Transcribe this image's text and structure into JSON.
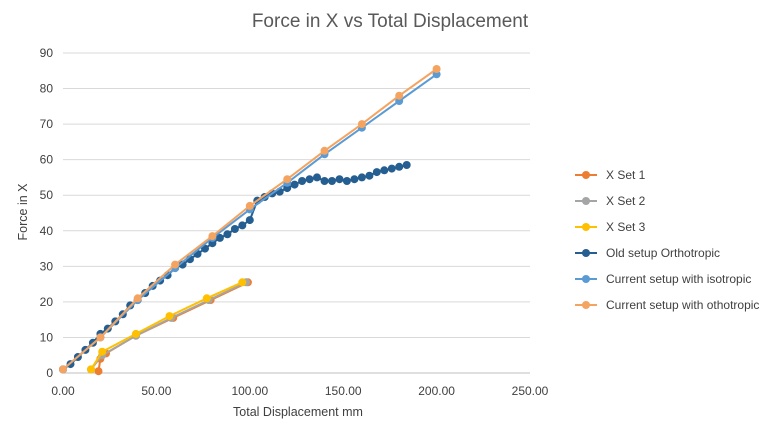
{
  "chart_data": {
    "type": "scatter",
    "title": "Force in X vs Total Displacement",
    "xlabel": "Total Displacement mm",
    "ylabel": "Force in X",
    "xlim": [
      0,
      250
    ],
    "ylim": [
      0,
      90
    ],
    "x_ticks": [
      0,
      50,
      100,
      150,
      200,
      250
    ],
    "x_tick_labels": [
      "0.00",
      "50.00",
      "100.00",
      "150.00",
      "200.00",
      "250.00"
    ],
    "y_ticks": [
      0,
      10,
      20,
      30,
      40,
      50,
      60,
      70,
      80,
      90
    ],
    "y_tick_labels": [
      "0",
      "10",
      "20",
      "30",
      "40",
      "50",
      "60",
      "70",
      "80",
      "90"
    ],
    "grid": "horizontal",
    "legend_position": "right",
    "series": [
      {
        "name": "X Set 1",
        "color": "#ED7D31",
        "lines": true,
        "points": [
          [
            19,
            0.5
          ],
          [
            20,
            4
          ],
          [
            23,
            5.5
          ],
          [
            39,
            10.5
          ],
          [
            59,
            15.5
          ],
          [
            79,
            20.5
          ],
          [
            99,
            25.5
          ]
        ]
      },
      {
        "name": "X Set 2",
        "color": "#A5A5A5",
        "lines": true,
        "points": [
          [
            15,
            1
          ],
          [
            21,
            5
          ],
          [
            39,
            10.5
          ],
          [
            58,
            15.5
          ],
          [
            78,
            20.5
          ],
          [
            98,
            25.5
          ]
        ]
      },
      {
        "name": "X Set 3",
        "color": "#FFC000",
        "lines": true,
        "points": [
          [
            15,
            1
          ],
          [
            21,
            6
          ],
          [
            39,
            11
          ],
          [
            57,
            16
          ],
          [
            77,
            21
          ],
          [
            96,
            25.5
          ]
        ]
      },
      {
        "name": "Old setup Orthotropic",
        "color": "#255E91",
        "lines": true,
        "points": [
          [
            0,
            1
          ],
          [
            4,
            2.5
          ],
          [
            8,
            4.5
          ],
          [
            12,
            6.5
          ],
          [
            16,
            8.5
          ],
          [
            20,
            11
          ],
          [
            24,
            12.5
          ],
          [
            28,
            14.5
          ],
          [
            32,
            16.5
          ],
          [
            36,
            19
          ],
          [
            40,
            20.5
          ],
          [
            44,
            22.5
          ],
          [
            48,
            24.5
          ],
          [
            52,
            26
          ],
          [
            56,
            27.5
          ],
          [
            60,
            29.5
          ],
          [
            64,
            30.5
          ],
          [
            68,
            32
          ],
          [
            72,
            33.5
          ],
          [
            76,
            35
          ],
          [
            80,
            36.5
          ],
          [
            84,
            38
          ],
          [
            88,
            39
          ],
          [
            92,
            40.5
          ],
          [
            96,
            41.5
          ],
          [
            100,
            43
          ],
          [
            104,
            48.5
          ],
          [
            108,
            49.5
          ],
          [
            112,
            50.5
          ],
          [
            116,
            51
          ],
          [
            120,
            52
          ],
          [
            124,
            53
          ],
          [
            128,
            54
          ],
          [
            132,
            54.5
          ],
          [
            136,
            55
          ],
          [
            140,
            54
          ],
          [
            144,
            54
          ],
          [
            148,
            54.5
          ],
          [
            152,
            54
          ],
          [
            156,
            54.5
          ],
          [
            160,
            55
          ],
          [
            164,
            55.5
          ],
          [
            168,
            56.5
          ],
          [
            172,
            57
          ],
          [
            176,
            57.5
          ],
          [
            180,
            58
          ],
          [
            184,
            58.5
          ]
        ]
      },
      {
        "name": "Current setup with isotropic",
        "color": "#5B9BD5",
        "lines": true,
        "points": [
          [
            0,
            1
          ],
          [
            20,
            10
          ],
          [
            40,
            20.5
          ],
          [
            60,
            29.5
          ],
          [
            80,
            38
          ],
          [
            100,
            46
          ],
          [
            120,
            53.5
          ],
          [
            140,
            61.5
          ],
          [
            160,
            69
          ],
          [
            180,
            76.5
          ],
          [
            200,
            84
          ]
        ]
      },
      {
        "name": "Current setup with othotropic",
        "color": "#F4A460",
        "lines": true,
        "points": [
          [
            0,
            1
          ],
          [
            20,
            10
          ],
          [
            40,
            21
          ],
          [
            60,
            30.5
          ],
          [
            80,
            38.5
          ],
          [
            100,
            47
          ],
          [
            120,
            54.5
          ],
          [
            140,
            62.5
          ],
          [
            160,
            70
          ],
          [
            180,
            78
          ],
          [
            200,
            85.5
          ]
        ]
      }
    ]
  }
}
